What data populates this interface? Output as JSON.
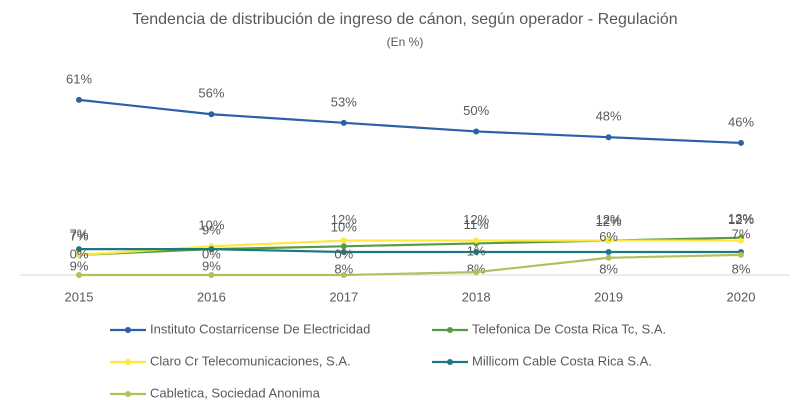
{
  "chart_data": {
    "type": "line",
    "title": "Tendencia de distribución de ingreso de cánon, según operador - Regulación",
    "subtitle": "(En %)",
    "categories": [
      "2015",
      "2016",
      "2017",
      "2018",
      "2019",
      "2020"
    ],
    "ylim": [
      0,
      62
    ],
    "series": [
      {
        "name": "Instituto Costarricense De Electricidad",
        "color": "#2e5fa8",
        "values": [
          61,
          56,
          53,
          50,
          48,
          46
        ],
        "value_labels": [
          "61%",
          "56%",
          "53%",
          "50%",
          "48%",
          "46%"
        ]
      },
      {
        "name": "Telefonica De Costa Rica Tc, S.A.",
        "color": "#5b9a45",
        "values": [
          7,
          9,
          10,
          11,
          12,
          13
        ],
        "value_labels": [
          "7%",
          "9%",
          "10%",
          "11%",
          "12%",
          "13%"
        ]
      },
      {
        "name": "Claro Cr Telecomunicaciones, S.A.",
        "color": "#ffe83a",
        "values": [
          7,
          10,
          12,
          12,
          12,
          12
        ],
        "value_labels": [
          "7%",
          "10%",
          "12%",
          "12%",
          "12%",
          "12%"
        ]
      },
      {
        "name": "Millicom Cable Costa Rica S.A.",
        "color": "#1b7a80",
        "values": [
          9,
          9,
          8,
          8,
          8,
          8
        ],
        "value_labels": [
          "9%",
          "9%",
          "8%",
          "8%",
          "8%",
          "8%"
        ]
      },
      {
        "name": "Cabletica, Sociedad Anonima",
        "color": "#b6bd5c",
        "values": [
          0,
          0,
          0,
          1,
          6,
          7
        ],
        "value_labels": [
          "0%",
          "0%",
          "0%",
          "1%",
          "6%",
          "7%"
        ]
      }
    ]
  }
}
